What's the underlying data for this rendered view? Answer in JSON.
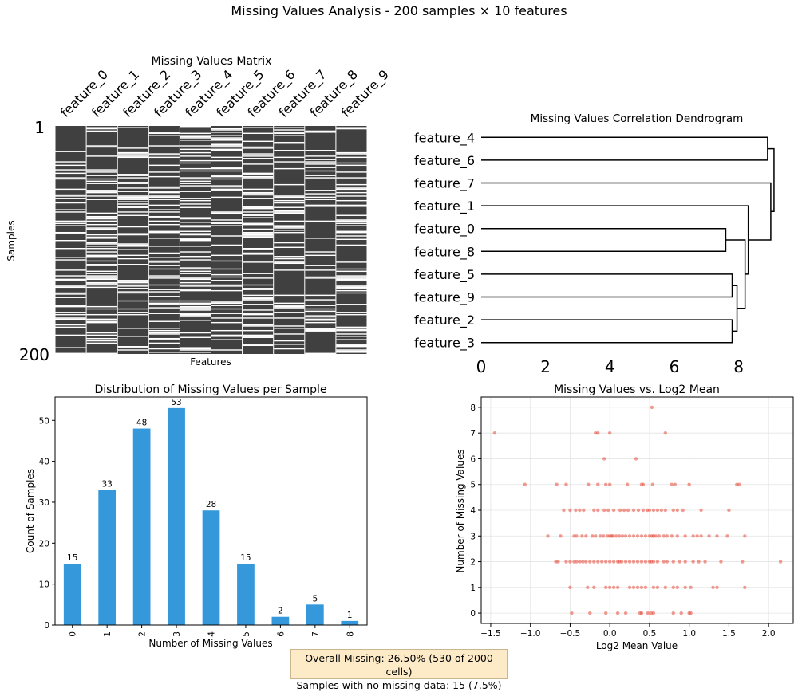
{
  "suptitle": "Missing Values Analysis - 200 samples × 10 features",
  "footer": {
    "line1": "Overall Missing: 26.50% (530 of 2000 cells)",
    "line2": "Samples with no missing data: 15 (7.5%)"
  },
  "colors": {
    "missing": "#ffffff",
    "present": "#404040",
    "bar": "#3498db",
    "scatter": "#e74c3c",
    "dendro": "#000000"
  },
  "chart_data": [
    {
      "type": "heatmap",
      "title": "Missing Values Matrix",
      "xlabel": "Features",
      "ylabel": "Samples",
      "columns": [
        "feature_0",
        "feature_1",
        "feature_2",
        "feature_3",
        "feature_4",
        "feature_5",
        "feature_6",
        "feature_7",
        "feature_8",
        "feature_9"
      ],
      "row_tick_labels": [
        "1",
        "200"
      ],
      "n_rows": 200,
      "missing_counts_per_column": [
        43,
        60,
        50,
        55,
        67,
        55,
        60,
        45,
        40,
        55
      ]
    },
    {
      "type": "dendrogram",
      "title": "Missing Values Correlation Dendrogram",
      "leaves": [
        "feature_4",
        "feature_6",
        "feature_7",
        "feature_1",
        "feature_0",
        "feature_8",
        "feature_5",
        "feature_9",
        "feature_2",
        "feature_3"
      ],
      "xticks": [
        0,
        2,
        4,
        6,
        8
      ],
      "xlim": [
        0,
        9.3
      ],
      "merges": [
        {
          "left": "L0",
          "right": "L1",
          "height": 8.9
        },
        {
          "left": "L4",
          "right": "L5",
          "height": 7.6
        },
        {
          "left": "L6",
          "right": "L7",
          "height": 7.8
        },
        {
          "left": "L8",
          "right": "L9",
          "height": 7.8
        },
        {
          "left": "m2",
          "right": "m3",
          "height": 7.95
        },
        {
          "left": "m1",
          "right": "m4",
          "height": 8.2
        },
        {
          "left": "L3",
          "right": "m5",
          "height": 8.3
        },
        {
          "left": "L2",
          "right": "m6",
          "height": 9.0
        },
        {
          "left": "m0",
          "right": "m7",
          "height": 9.1
        }
      ]
    },
    {
      "type": "bar",
      "title": "Distribution of Missing Values per Sample",
      "xlabel": "Number of Missing Values",
      "ylabel": "Count of Samples",
      "categories": [
        "0",
        "1",
        "2",
        "3",
        "4",
        "5",
        "6",
        "7",
        "8"
      ],
      "values": [
        15,
        33,
        48,
        53,
        28,
        15,
        2,
        5,
        1
      ],
      "yticks": [
        0,
        10,
        20,
        30,
        40,
        50
      ],
      "ylim": [
        0,
        55.7
      ]
    },
    {
      "type": "scatter",
      "title": "Missing Values vs. Log2 Mean",
      "xlabel": "Log2 Mean Value",
      "ylabel": "Number of Missing Values",
      "xticks": [
        -1.5,
        -1.0,
        -0.5,
        0.0,
        0.5,
        1.0,
        1.5,
        2.0
      ],
      "xtick_labels": [
        "−1.5",
        "−1.0",
        "−0.5",
        "0.0",
        "0.5",
        "1.0",
        "1.5",
        "2.0"
      ],
      "yticks": [
        0,
        1,
        2,
        3,
        4,
        5,
        6,
        7,
        8
      ],
      "xlim": [
        -1.62,
        2.31
      ],
      "ylim": [
        -0.4,
        8.4
      ],
      "grid": true,
      "points": [
        [
          -1.45,
          7
        ],
        [
          -0.18,
          7
        ],
        [
          -0.15,
          7
        ],
        [
          0.0,
          7
        ],
        [
          0.7,
          7
        ],
        [
          0.53,
          8
        ],
        [
          -0.07,
          6
        ],
        [
          0.33,
          6
        ],
        [
          -1.07,
          5
        ],
        [
          -0.67,
          5
        ],
        [
          -0.55,
          5
        ],
        [
          -0.27,
          5
        ],
        [
          -0.15,
          5
        ],
        [
          -0.05,
          5
        ],
        [
          0.0,
          5
        ],
        [
          0.22,
          5
        ],
        [
          0.4,
          5
        ],
        [
          0.42,
          5
        ],
        [
          0.78,
          5
        ],
        [
          0.82,
          5
        ],
        [
          1.0,
          5
        ],
        [
          1.6,
          5
        ],
        [
          1.63,
          5
        ],
        [
          0.54,
          5
        ],
        [
          -0.58,
          4
        ],
        [
          -0.5,
          4
        ],
        [
          -0.43,
          4
        ],
        [
          -0.38,
          4
        ],
        [
          -0.33,
          4
        ],
        [
          -0.2,
          4
        ],
        [
          -0.15,
          4
        ],
        [
          -0.07,
          4
        ],
        [
          -0.02,
          4
        ],
        [
          0.05,
          4
        ],
        [
          0.13,
          4
        ],
        [
          0.18,
          4
        ],
        [
          0.23,
          4
        ],
        [
          0.3,
          4
        ],
        [
          0.36,
          4
        ],
        [
          0.42,
          4
        ],
        [
          0.47,
          4
        ],
        [
          0.5,
          4
        ],
        [
          0.55,
          4
        ],
        [
          0.6,
          4
        ],
        [
          0.65,
          4
        ],
        [
          0.7,
          4
        ],
        [
          0.8,
          4
        ],
        [
          0.85,
          4
        ],
        [
          0.92,
          4
        ],
        [
          1.15,
          4
        ],
        [
          1.5,
          4
        ],
        [
          -0.78,
          3
        ],
        [
          -0.62,
          3
        ],
        [
          -0.45,
          3
        ],
        [
          -0.42,
          3
        ],
        [
          -0.35,
          3
        ],
        [
          -0.3,
          3
        ],
        [
          -0.22,
          3
        ],
        [
          -0.18,
          3
        ],
        [
          -0.12,
          3
        ],
        [
          -0.08,
          3
        ],
        [
          -0.03,
          3
        ],
        [
          0.0,
          3
        ],
        [
          0.04,
          3
        ],
        [
          0.08,
          3
        ],
        [
          0.12,
          3
        ],
        [
          0.16,
          3
        ],
        [
          0.2,
          3
        ],
        [
          0.25,
          3
        ],
        [
          0.3,
          3
        ],
        [
          0.35,
          3
        ],
        [
          0.4,
          3
        ],
        [
          0.45,
          3
        ],
        [
          0.5,
          3
        ],
        [
          0.53,
          3
        ],
        [
          0.58,
          3
        ],
        [
          0.62,
          3
        ],
        [
          0.68,
          3
        ],
        [
          0.72,
          3
        ],
        [
          0.78,
          3
        ],
        [
          0.85,
          3
        ],
        [
          0.95,
          3
        ],
        [
          1.05,
          3
        ],
        [
          1.1,
          3
        ],
        [
          1.15,
          3
        ],
        [
          1.25,
          3
        ],
        [
          1.35,
          3
        ],
        [
          1.48,
          3
        ],
        [
          1.7,
          3
        ],
        [
          0.02,
          3
        ],
        [
          0.55,
          3
        ],
        [
          -0.68,
          2
        ],
        [
          -0.65,
          2
        ],
        [
          -0.55,
          2
        ],
        [
          -0.5,
          2
        ],
        [
          -0.45,
          2
        ],
        [
          -0.42,
          2
        ],
        [
          -0.38,
          2
        ],
        [
          -0.34,
          2
        ],
        [
          -0.3,
          2
        ],
        [
          -0.25,
          2
        ],
        [
          -0.2,
          2
        ],
        [
          -0.15,
          2
        ],
        [
          -0.1,
          2
        ],
        [
          -0.05,
          2
        ],
        [
          0.0,
          2
        ],
        [
          0.05,
          2
        ],
        [
          0.1,
          2
        ],
        [
          0.15,
          2
        ],
        [
          0.2,
          2
        ],
        [
          0.25,
          2
        ],
        [
          0.3,
          2
        ],
        [
          0.35,
          2
        ],
        [
          0.4,
          2
        ],
        [
          0.45,
          2
        ],
        [
          0.5,
          2
        ],
        [
          0.55,
          2
        ],
        [
          0.6,
          2
        ],
        [
          0.68,
          2
        ],
        [
          0.72,
          2
        ],
        [
          0.8,
          2
        ],
        [
          0.88,
          2
        ],
        [
          0.95,
          2
        ],
        [
          1.05,
          2
        ],
        [
          1.12,
          2
        ],
        [
          1.2,
          2
        ],
        [
          1.4,
          2
        ],
        [
          1.67,
          2
        ],
        [
          2.15,
          2
        ],
        [
          0.12,
          2
        ],
        [
          0.52,
          2
        ],
        [
          -0.5,
          1
        ],
        [
          -0.28,
          1
        ],
        [
          -0.2,
          1
        ],
        [
          -0.05,
          1
        ],
        [
          0.0,
          1
        ],
        [
          0.1,
          1
        ],
        [
          0.25,
          1
        ],
        [
          0.3,
          1
        ],
        [
          0.35,
          1
        ],
        [
          0.4,
          1
        ],
        [
          0.45,
          1
        ],
        [
          0.55,
          1
        ],
        [
          0.6,
          1
        ],
        [
          0.7,
          1
        ],
        [
          0.8,
          1
        ],
        [
          0.85,
          1
        ],
        [
          0.95,
          1
        ],
        [
          1.02,
          1
        ],
        [
          1.3,
          1
        ],
        [
          1.35,
          1
        ],
        [
          1.7,
          1
        ],
        [
          0.05,
          1
        ],
        [
          -0.48,
          0
        ],
        [
          -0.25,
          0
        ],
        [
          -0.05,
          0
        ],
        [
          0.1,
          0
        ],
        [
          0.2,
          0
        ],
        [
          0.38,
          0
        ],
        [
          0.4,
          0
        ],
        [
          0.48,
          0
        ],
        [
          0.52,
          0
        ],
        [
          0.55,
          0
        ],
        [
          0.8,
          0
        ],
        [
          0.9,
          0
        ],
        [
          1.0,
          0
        ],
        [
          1.02,
          0
        ]
      ]
    }
  ]
}
